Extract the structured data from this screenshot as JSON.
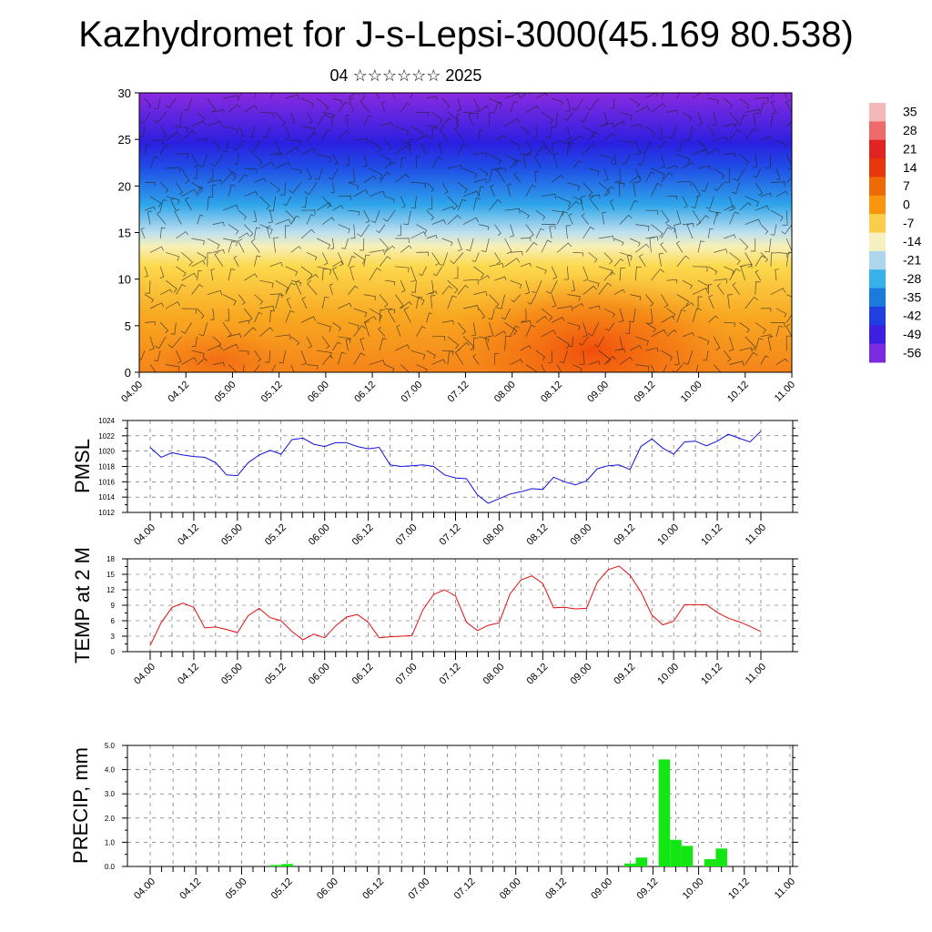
{
  "title": "Kazhydromet for J-s-Lepsi-3000(45.169 80.538)",
  "subtitle": "04 ☆☆☆☆☆☆ 2025",
  "time_ticks": [
    "04.00",
    "04.12",
    "05.00",
    "05.12",
    "06.00",
    "06.12",
    "07.00",
    "07.12",
    "08.00",
    "08.12",
    "09.00",
    "09.12",
    "10.00",
    "10.12",
    "11.00"
  ],
  "chart_data": [
    {
      "type": "heatmap",
      "name": "temperature-wind-cross-section",
      "ylim": [
        0,
        30
      ],
      "yticks": [
        "0",
        "5",
        "10",
        "15",
        "20",
        "25",
        "30"
      ],
      "colorbar": {
        "labels": [
          "35",
          "28",
          "21",
          "14",
          "7",
          "0",
          "-7",
          "-14",
          "-21",
          "-28",
          "-35",
          "-42",
          "-49",
          "-56"
        ],
        "colors": [
          "#f4b8b8",
          "#ef6a6a",
          "#e32222",
          "#e5370a",
          "#ee6a06",
          "#f8960e",
          "#fccd4a",
          "#f5f0c0",
          "#aed6ec",
          "#37b1ea",
          "#1a7bdd",
          "#1f3fe0",
          "#3c1fe0",
          "#7a2ae0"
        ]
      }
    },
    {
      "type": "line",
      "ylabel": "PMSL",
      "ylim": [
        1012,
        1024
      ],
      "yticks": [
        "1012",
        "1014",
        "1016",
        "1018",
        "1020",
        "1022",
        "1024"
      ],
      "color": "#1010e0",
      "x": [
        0,
        3,
        6,
        9,
        12,
        15,
        18,
        21,
        24,
        27,
        30,
        33,
        36,
        39,
        42,
        45,
        48,
        51,
        54,
        57,
        60,
        63,
        66,
        69,
        72,
        75,
        78,
        81,
        84,
        87,
        90,
        93,
        96,
        99,
        102,
        105,
        108,
        111,
        114,
        117,
        120,
        123,
        126,
        129,
        132,
        135,
        138,
        141,
        144,
        147,
        150,
        153,
        156,
        159,
        162,
        165,
        168
      ],
      "values": [
        1020.5,
        1019.2,
        1019.8,
        1019.5,
        1019.3,
        1019.2,
        1018.5,
        1016.9,
        1016.8,
        1018.5,
        1019.5,
        1020.1,
        1019.6,
        1021.5,
        1021.7,
        1020.9,
        1020.6,
        1021.1,
        1021.1,
        1020.6,
        1020.3,
        1020.5,
        1018.2,
        1018.0,
        1018.1,
        1018.2,
        1018.0,
        1016.9,
        1016.5,
        1016.4,
        1014.3,
        1013.2,
        1013.8,
        1014.4,
        1014.7,
        1015.1,
        1015.0,
        1016.6,
        1016.0,
        1015.6,
        1016.1,
        1017.7,
        1018.1,
        1018.2,
        1017.6,
        1020.6,
        1021.6,
        1020.4,
        1019.6,
        1021.2,
        1021.3,
        1020.7,
        1021.3,
        1022.2,
        1021.7,
        1021.2,
        1022.6
      ]
    },
    {
      "type": "line",
      "ylabel": "TEMP at 2 M",
      "ylim": [
        0,
        18
      ],
      "yticks": [
        "0",
        "3",
        "6",
        "9",
        "12",
        "15",
        "18"
      ],
      "color": "#e01010",
      "x": [
        0,
        3,
        6,
        9,
        12,
        15,
        18,
        21,
        24,
        27,
        30,
        33,
        36,
        39,
        42,
        45,
        48,
        51,
        54,
        57,
        60,
        63,
        66,
        69,
        72,
        75,
        78,
        81,
        84,
        87,
        90,
        93,
        96,
        99,
        102,
        105,
        108,
        111,
        114,
        117,
        120,
        123,
        126,
        129,
        132,
        135,
        138,
        141,
        144,
        147,
        150,
        153,
        156,
        159,
        162,
        165,
        168
      ],
      "values": [
        1.2,
        5.6,
        8.6,
        9.4,
        8.6,
        4.6,
        4.8,
        4.3,
        3.7,
        7.0,
        8.4,
        6.6,
        6.0,
        3.9,
        2.3,
        3.4,
        2.7,
        5.0,
        6.7,
        7.2,
        5.7,
        2.7,
        2.9,
        3.0,
        3.1,
        8.1,
        11.1,
        12.0,
        10.8,
        5.7,
        4.1,
        5.1,
        5.6,
        11.2,
        13.9,
        14.7,
        13.2,
        8.5,
        8.6,
        8.3,
        8.4,
        13.5,
        15.9,
        16.6,
        14.8,
        11.6,
        7.1,
        5.2,
        5.9,
        9.1,
        9.1,
        9.1,
        7.6,
        6.5,
        5.8,
        4.9,
        3.9
      ]
    },
    {
      "type": "bar",
      "ylabel": "PRECIP, mm",
      "ylim": [
        0,
        5
      ],
      "yticks": [
        "0.0",
        "1.0",
        "2.0",
        "3.0",
        "4.0",
        "5.0"
      ],
      "color": "#13e613",
      "x": [
        33,
        36,
        126,
        129,
        135,
        138,
        141,
        147,
        150
      ],
      "values": [
        0.06,
        0.1,
        0.12,
        0.37,
        4.42,
        1.1,
        0.85,
        0.3,
        0.74
      ]
    }
  ]
}
